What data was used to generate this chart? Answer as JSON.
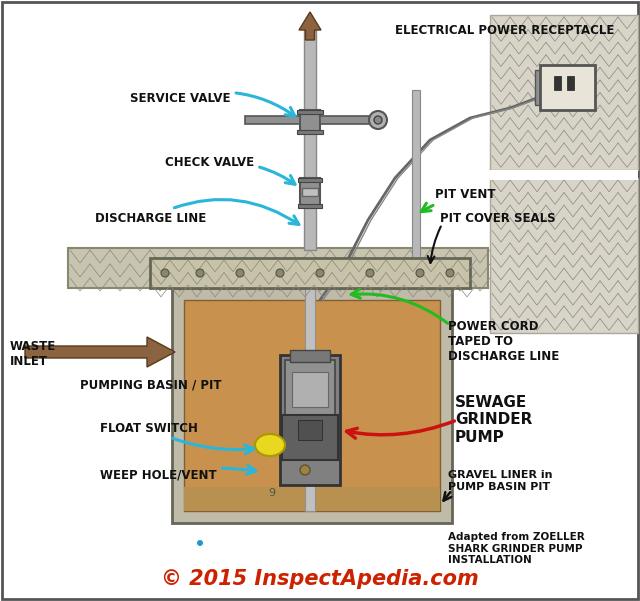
{
  "bg_color": "#ffffff",
  "title_text": "© 2015 InspectApedia.com",
  "title_color": "#cc2200",
  "adapted_text": "Adapted from ZOELLER\nSHARK GRINDER PUMP\nINSTALLATION",
  "labels": {
    "service_valve": "SERVICE VALVE",
    "check_valve": "CHECK VALVE",
    "discharge_line": "DISCHARGE LINE",
    "waste_inlet": "WASTE\nINLET",
    "pumping_basin": "PUMPING BASIN / PIT",
    "float_switch": "FLOAT SWITCH",
    "weep_hole": "WEEP HOLE/VENT",
    "electrical_power": "ELECTRICAL POWER RECEPTACLE",
    "pit_vent": "PIT VENT",
    "pit_cover_seals": "PIT COVER SEALS",
    "power_cord": "POWER CORD\nTAPED TO\nDISCHARGE LINE",
    "sewage_grinder": "SEWAGE\nGRINDER\nPUMP",
    "gravel_liner": "GRAVEL LINER in\nPUMP BASIN PIT"
  },
  "arrow_cyan": "#29b6d8",
  "arrow_green": "#22bb22",
  "arrow_red": "#cc1111",
  "arrow_brown": "#8B6340",
  "concrete_color": "#d8d4c8",
  "concrete_hatch_color": "#888880",
  "ground_color": "#c8c4b0",
  "pit_wall_color": "#c0baa8",
  "pit_fill_color": "#c8924e",
  "pipe_color": "#b8b8b8",
  "pipe_dark": "#888888",
  "pump_dark": "#404040",
  "pump_mid": "#686868",
  "valve_color": "#a0a0a0",
  "yellow_float": "#e8d820",
  "recept_color": "#e8e4d8",
  "border_color": "#555555"
}
